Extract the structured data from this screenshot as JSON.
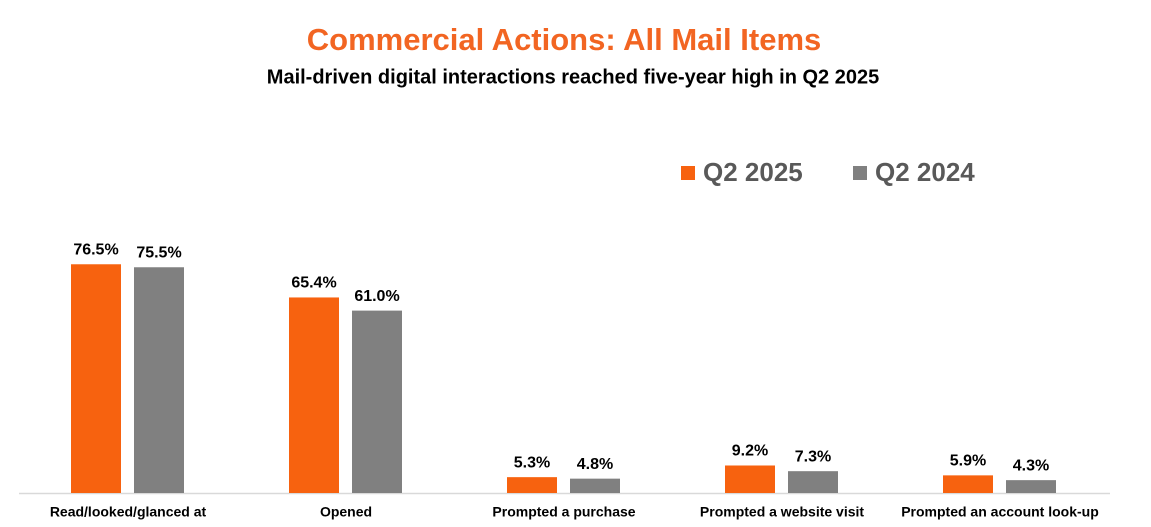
{
  "chart_data": {
    "type": "bar",
    "title": "Commercial Actions: All Mail Items",
    "subtitle": "Mail-driven digital interactions reached five-year high in Q2 2025",
    "categories": [
      "Read/looked/glanced at",
      "Opened",
      "Prompted a purchase",
      "Prompted a website visit",
      "Prompted an account look-up"
    ],
    "series": [
      {
        "name": "Q2 2025",
        "color": "#f7620f",
        "values": [
          76.5,
          65.4,
          5.3,
          9.2,
          5.9
        ],
        "value_labels": [
          "76.5%",
          "65.4%",
          "5.3%",
          "9.2%",
          "5.9%"
        ]
      },
      {
        "name": "Q2 2024",
        "color": "#808080",
        "values": [
          75.5,
          61.0,
          4.8,
          7.3,
          4.3
        ],
        "value_labels": [
          "75.5%",
          "61.0%",
          "4.8%",
          "7.3%",
          "4.3%"
        ]
      }
    ]
  }
}
